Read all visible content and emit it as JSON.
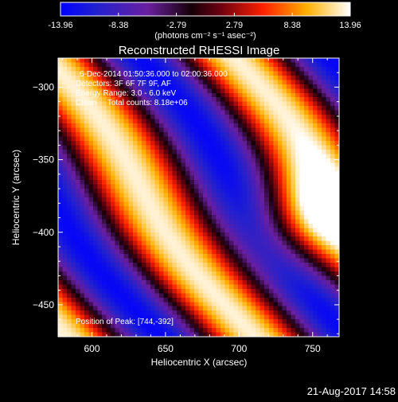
{
  "chart_data": {
    "type": "heatmap",
    "title": "Reconstructed RHESSI Image",
    "xlabel": "Heliocentric X (arcsec)",
    "ylabel": "Heliocentric Y (arcsec)",
    "xlim": [
      577,
      768
    ],
    "ylim": [
      -472,
      -280
    ],
    "x_ticks": [
      600,
      650,
      700,
      750
    ],
    "y_ticks": [
      -300,
      -350,
      -400,
      -450
    ],
    "colorbar": {
      "range": [
        -13.96,
        13.96
      ],
      "ticks": [
        "-13.96",
        "-8.38",
        "-2.79",
        "2.79",
        "8.38",
        "13.96"
      ],
      "unit_label": "(photons cm⁻² s⁻¹ asec⁻²)"
    },
    "annotations": [
      "6-Dec-2014 01:50:36.000 to 02:00:36.000",
      "Detectors: 3F 6F 7F 9F, AF",
      "Energy Range: 3.0 - 6.0 keV",
      "Clean     Total counts: 8.18e+06"
    ],
    "position_label": "Position of Peak: [744,-392]",
    "peak": [
      744,
      -392
    ],
    "grid": false
  },
  "footer": {
    "timestamp": "21-Aug-2017 14:58"
  }
}
